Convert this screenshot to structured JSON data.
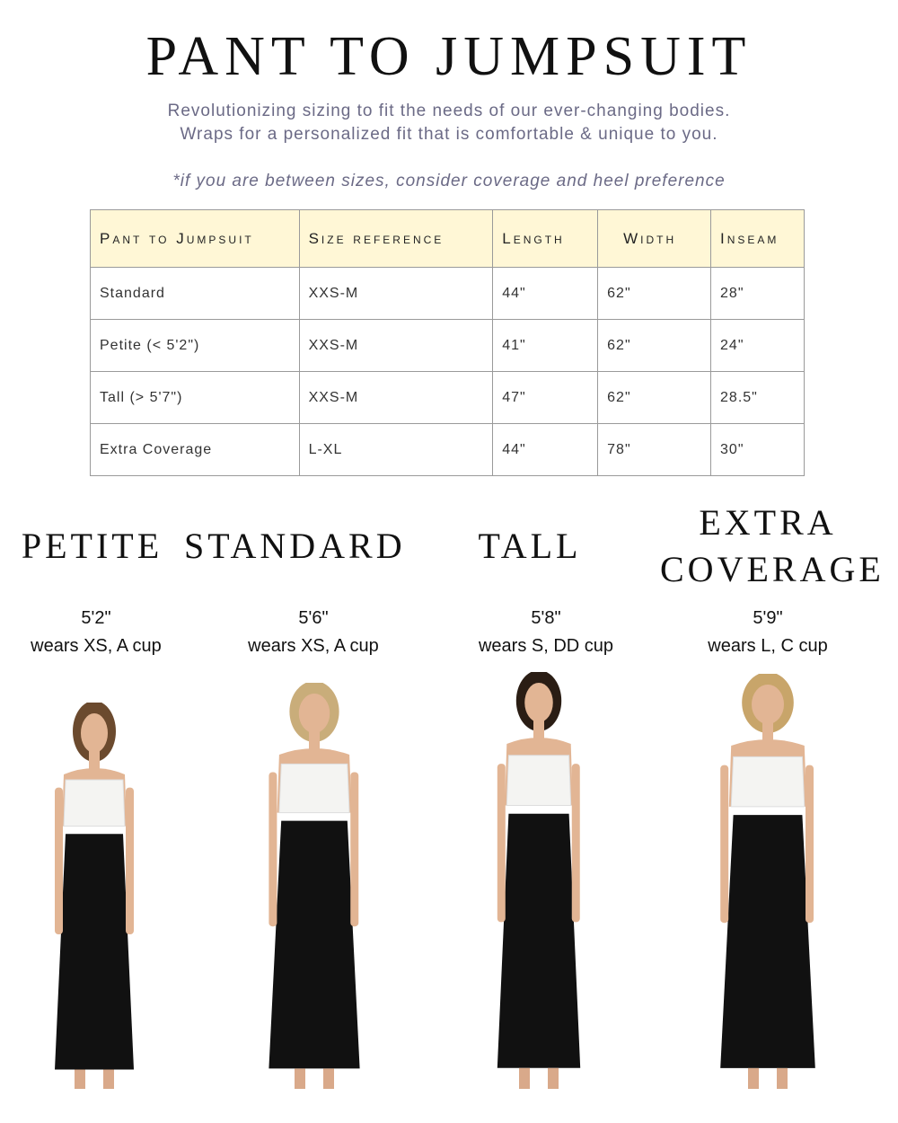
{
  "header": {
    "title": "PANT TO JUMPSUIT",
    "subtitle_line1": "Revolutionizing sizing to fit the needs of our ever-changing bodies.",
    "subtitle_line2": "Wraps for a personalized fit that is comfortable & unique to you.",
    "note": "*if you are between sizes, consider coverage and heel preference"
  },
  "table": {
    "header_bg": "#fff7d6",
    "columns": [
      "Pant to Jumpsuit",
      "Size reference",
      "Length",
      "Width",
      "Inseam"
    ],
    "rows": [
      [
        "Standard",
        "XXS-M",
        "44\"",
        "62\"",
        "28\""
      ],
      [
        "Petite (< 5'2\")",
        "XXS-M",
        "41\"",
        "62\"",
        "24\""
      ],
      [
        "Tall (> 5'7\")",
        "XXS-M",
        "47\"",
        "62\"",
        "28.5\""
      ],
      [
        "Extra Coverage",
        "L-XL",
        "44\"",
        "78\"",
        "30\""
      ]
    ]
  },
  "models": [
    {
      "title": "PETITE",
      "height": "5'2\"",
      "wears": "wears XS, A cup"
    },
    {
      "title": "STANDARD",
      "height": "5'6\"",
      "wears": "wears XS, A cup"
    },
    {
      "title": "TALL",
      "height": "5'8\"",
      "wears": "wears S, DD cup"
    },
    {
      "title": "EXTRA COVERAGE",
      "height": "5'9\"",
      "wears": "wears L, C cup"
    }
  ]
}
